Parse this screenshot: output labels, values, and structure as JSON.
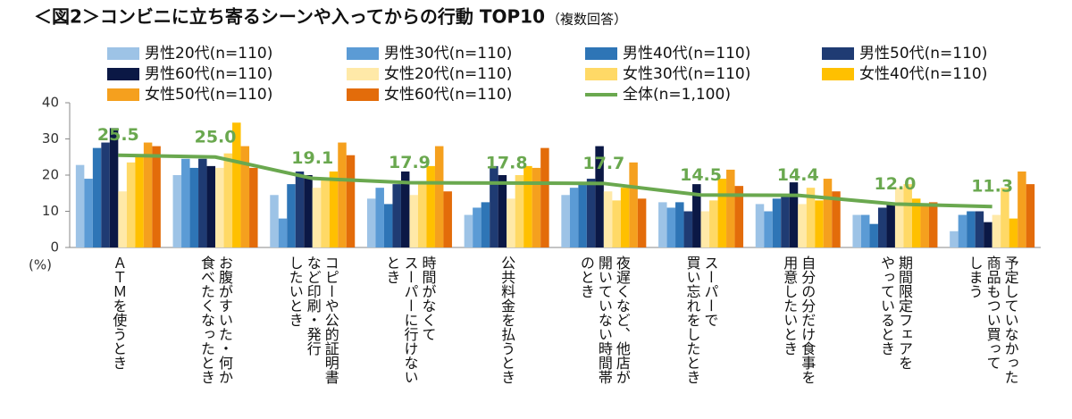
{
  "chart_data": {
    "type": "bar",
    "title": "＜図2＞コンビニに立ち寄るシーンや入ってからの行動 TOP10",
    "subtitle": "（複数回答）",
    "y_label": "(%)",
    "categories": [
      "ＡＴＭを使うとき",
      "お腹がすいた・何か\n食べたくなったとき",
      "コピーや公的証明書\nなど印刷・発行\nしたいとき",
      "時間がなくて\nスーパーに行けない\nとき",
      "公共料金を払うとき",
      "夜遅くなど、他店が\n開いていない時間帯\nのとき",
      "スーパーで\n買い忘れをしたとき",
      "自分の分だけ食事を\n用意したいとき",
      "期間限定フェアを\nやっているとき",
      "予定していなかった\n商品もつい買って\nしまう"
    ],
    "series": [
      {
        "name": "男性20代(n=110)",
        "color": "#9dc3e6",
        "values": [
          22.8,
          20,
          14.5,
          13.5,
          9,
          14.5,
          12.5,
          12,
          9,
          4.5
        ]
      },
      {
        "name": "男性30代(n=110)",
        "color": "#5b9bd5",
        "values": [
          19,
          24.5,
          8,
          16.5,
          11,
          16.5,
          11,
          10,
          9,
          9
        ]
      },
      {
        "name": "男性40代(n=110)",
        "color": "#2e75b6",
        "values": [
          27.5,
          22,
          17.5,
          12,
          12.5,
          17.5,
          12.5,
          13.5,
          6.5,
          10
        ]
      },
      {
        "name": "男性50代(n=110)",
        "color": "#1f3b73",
        "values": [
          29,
          24.5,
          21,
          17.5,
          22.5,
          19,
          10,
          14,
          11,
          10
        ]
      },
      {
        "name": "男性60代(n=110)",
        "color": "#0b1845",
        "values": [
          33,
          22.5,
          20,
          21,
          20,
          28,
          17.5,
          18,
          12,
          7
        ]
      },
      {
        "name": "女性20代(n=110)",
        "color": "#ffe9a8",
        "values": [
          15.5,
          22,
          16.5,
          14.5,
          13.5,
          15.5,
          10,
          12,
          16.5,
          9
        ]
      },
      {
        "name": "女性30代(n=110)",
        "color": "#ffd966",
        "values": [
          23.5,
          26,
          19,
          18,
          20,
          13,
          13,
          16.5,
          17.5,
          16.5
        ]
      },
      {
        "name": "女性40代(n=110)",
        "color": "#ffc000",
        "values": [
          25,
          34.5,
          21,
          22.5,
          22.5,
          16.5,
          19,
          13,
          13.5,
          8
        ]
      },
      {
        "name": "女性50代(n=110)",
        "color": "#f5a01e",
        "values": [
          29,
          28,
          29,
          28,
          22,
          23.5,
          21.5,
          19,
          11.5,
          21
        ]
      },
      {
        "name": "女性60代(n=110)",
        "color": "#e36c0a",
        "values": [
          28,
          22,
          25.5,
          15.5,
          27.5,
          13.5,
          17,
          15.5,
          12.5,
          17.5
        ]
      },
      {
        "name": "全体(n=1,100)",
        "color": "#6aa84f",
        "type": "line",
        "values": [
          25.5,
          25.0,
          19.1,
          17.9,
          17.8,
          17.7,
          14.5,
          14.4,
          12.0,
          11.3
        ],
        "value_labels": [
          "25.5",
          "25.0",
          "19.1",
          "17.9",
          "17.8",
          "17.7",
          "14.5",
          "14.4",
          "12.0",
          "11.3"
        ]
      }
    ],
    "ylim": [
      0,
      40
    ],
    "yticks": [
      0,
      10,
      20,
      30,
      40
    ],
    "grid": false
  }
}
